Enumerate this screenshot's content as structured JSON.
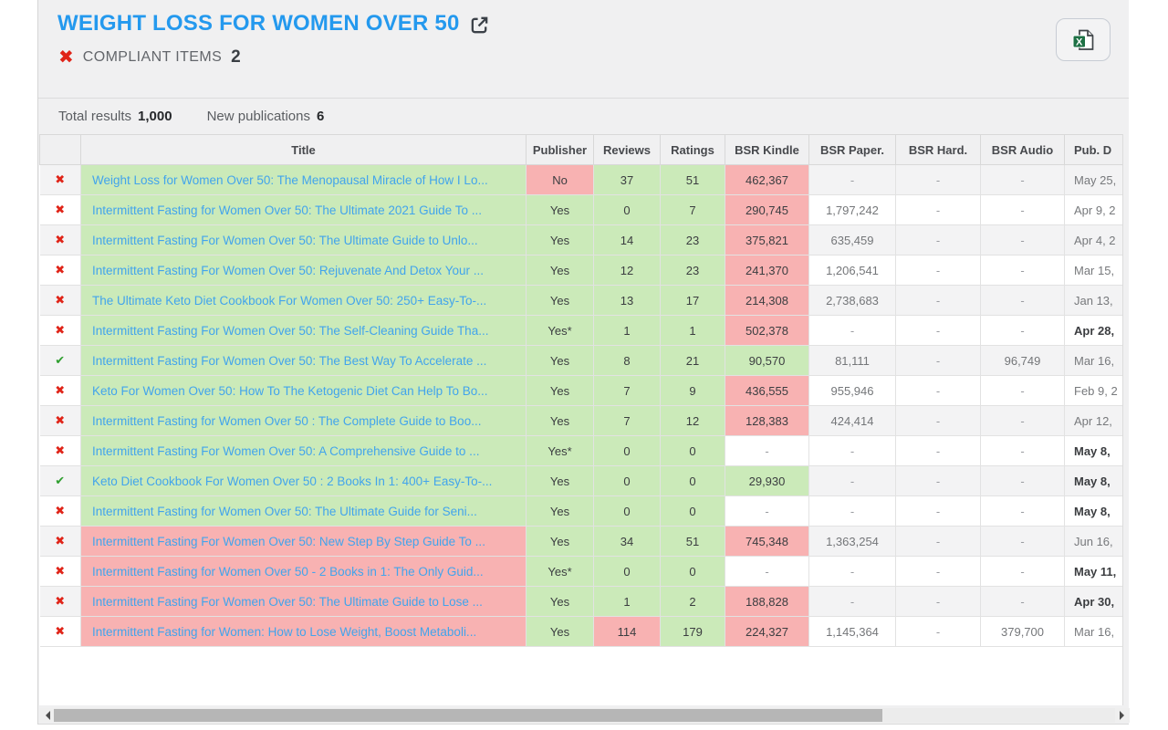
{
  "colors": {
    "accent_blue": "#2499ee",
    "link_blue": "#42a4ec",
    "green_bg": "#cbeab9",
    "red_bg": "#f8b2b2",
    "x_red": "#e02418",
    "check_green": "#2f9e2f"
  },
  "icons": {
    "external_link": "external-link-icon",
    "excel_export": "excel-export-icon",
    "x_glyph": "✖",
    "check_glyph": "✔"
  },
  "header": {
    "title": "WEIGHT LOSS FOR WOMEN OVER 50",
    "compliant_label": "COMPLIANT ITEMS",
    "compliant_count": "2"
  },
  "summary": {
    "total_results_label": "Total results",
    "total_results_value": "1,000",
    "new_publications_label": "New publications",
    "new_publications_value": "6"
  },
  "table": {
    "columns": [
      {
        "key": "status",
        "label": ""
      },
      {
        "key": "title",
        "label": "Title"
      },
      {
        "key": "publisher",
        "label": "Publisher"
      },
      {
        "key": "reviews",
        "label": "Reviews"
      },
      {
        "key": "ratings",
        "label": "Ratings"
      },
      {
        "key": "bsr_kindle",
        "label": "BSR Kindle"
      },
      {
        "key": "bsr_paper",
        "label": "BSR Paper."
      },
      {
        "key": "bsr_hard",
        "label": "BSR Hard."
      },
      {
        "key": "bsr_audio",
        "label": "BSR Audio"
      },
      {
        "key": "pub_date",
        "label": "Pub. D"
      }
    ],
    "rows": [
      {
        "status": "x",
        "title": "Weight Loss for Women Over 50: The Menopausal Miracle of How I Lo...",
        "title_bg": "green",
        "publisher": "No",
        "publisher_bg": "red",
        "reviews": "37",
        "reviews_bg": "green",
        "ratings": "51",
        "ratings_bg": "green",
        "bsr_kindle": "462,367",
        "bsr_kindle_bg": "red",
        "bsr_paper": "-",
        "bsr_hard": "-",
        "bsr_audio": "-",
        "pub_date": "May 25,",
        "pub_date_bold": false
      },
      {
        "status": "x",
        "title": "Intermittent Fasting for Women Over 50: The Ultimate 2021 Guide To ...",
        "title_bg": "green",
        "publisher": "Yes",
        "publisher_bg": "green",
        "reviews": "0",
        "reviews_bg": "green",
        "ratings": "7",
        "ratings_bg": "green",
        "bsr_kindle": "290,745",
        "bsr_kindle_bg": "red",
        "bsr_paper": "1,797,242",
        "bsr_hard": "-",
        "bsr_audio": "-",
        "pub_date": "Apr 9, 2",
        "pub_date_bold": false
      },
      {
        "status": "x",
        "title": "Intermittent Fasting For Women Over 50: The Ultimate Guide to Unlo...",
        "title_bg": "green",
        "publisher": "Yes",
        "publisher_bg": "green",
        "reviews": "14",
        "reviews_bg": "green",
        "ratings": "23",
        "ratings_bg": "green",
        "bsr_kindle": "375,821",
        "bsr_kindle_bg": "red",
        "bsr_paper": "635,459",
        "bsr_hard": "-",
        "bsr_audio": "-",
        "pub_date": "Apr 4, 2",
        "pub_date_bold": false
      },
      {
        "status": "x",
        "title": "Intermittent Fasting For Women Over 50: Rejuvenate And Detox Your ...",
        "title_bg": "green",
        "publisher": "Yes",
        "publisher_bg": "green",
        "reviews": "12",
        "reviews_bg": "green",
        "ratings": "23",
        "ratings_bg": "green",
        "bsr_kindle": "241,370",
        "bsr_kindle_bg": "red",
        "bsr_paper": "1,206,541",
        "bsr_hard": "-",
        "bsr_audio": "-",
        "pub_date": "Mar 15,",
        "pub_date_bold": false
      },
      {
        "status": "x",
        "title": "The Ultimate Keto Diet Cookbook For Women Over 50: 250+ Easy-To-...",
        "title_bg": "green",
        "publisher": "Yes",
        "publisher_bg": "green",
        "reviews": "13",
        "reviews_bg": "green",
        "ratings": "17",
        "ratings_bg": "green",
        "bsr_kindle": "214,308",
        "bsr_kindle_bg": "red",
        "bsr_paper": "2,738,683",
        "bsr_hard": "-",
        "bsr_audio": "-",
        "pub_date": "Jan 13,",
        "pub_date_bold": false
      },
      {
        "status": "x",
        "title": "Intermittent Fasting For Women Over 50: The Self-Cleaning Guide Tha...",
        "title_bg": "green",
        "publisher": "Yes*",
        "publisher_bg": "green",
        "reviews": "1",
        "reviews_bg": "green",
        "ratings": "1",
        "ratings_bg": "green",
        "bsr_kindle": "502,378",
        "bsr_kindle_bg": "red",
        "bsr_paper": "-",
        "bsr_hard": "-",
        "bsr_audio": "-",
        "pub_date": "Apr 28,",
        "pub_date_bold": true
      },
      {
        "status": "check",
        "title": "Intermittent Fasting For Women Over 50: The Best Way To Accelerate ...",
        "title_bg": "green",
        "publisher": "Yes",
        "publisher_bg": "green",
        "reviews": "8",
        "reviews_bg": "green",
        "ratings": "21",
        "ratings_bg": "green",
        "bsr_kindle": "90,570",
        "bsr_kindle_bg": "green",
        "bsr_paper": "81,111",
        "bsr_hard": "-",
        "bsr_audio": "96,749",
        "pub_date": "Mar 16,",
        "pub_date_bold": false
      },
      {
        "status": "x",
        "title": "Keto For Women Over 50: How To The Ketogenic Diet Can Help To Bo...",
        "title_bg": "green",
        "publisher": "Yes",
        "publisher_bg": "green",
        "reviews": "7",
        "reviews_bg": "green",
        "ratings": "9",
        "ratings_bg": "green",
        "bsr_kindle": "436,555",
        "bsr_kindle_bg": "red",
        "bsr_paper": "955,946",
        "bsr_hard": "-",
        "bsr_audio": "-",
        "pub_date": "Feb 9, 2",
        "pub_date_bold": false
      },
      {
        "status": "x",
        "title": "Intermittent Fasting for Women Over 50 : The Complete Guide to Boo...",
        "title_bg": "green",
        "publisher": "Yes",
        "publisher_bg": "green",
        "reviews": "7",
        "reviews_bg": "green",
        "ratings": "12",
        "ratings_bg": "green",
        "bsr_kindle": "128,383",
        "bsr_kindle_bg": "red",
        "bsr_paper": "424,414",
        "bsr_hard": "-",
        "bsr_audio": "-",
        "pub_date": "Apr 12,",
        "pub_date_bold": false
      },
      {
        "status": "x",
        "title": "Intermittent Fasting For Women Over 50: A Comprehensive Guide to ...",
        "title_bg": "green",
        "publisher": "Yes*",
        "publisher_bg": "green",
        "reviews": "0",
        "reviews_bg": "green",
        "ratings": "0",
        "ratings_bg": "green",
        "bsr_kindle": "-",
        "bsr_kindle_bg": "none",
        "bsr_paper": "-",
        "bsr_hard": "-",
        "bsr_audio": "-",
        "pub_date": "May 8,",
        "pub_date_bold": true
      },
      {
        "status": "check",
        "title": "Keto Diet Cookbook For Women Over 50 : 2 Books In 1: 400+ Easy-To-...",
        "title_bg": "green",
        "publisher": "Yes",
        "publisher_bg": "green",
        "reviews": "0",
        "reviews_bg": "green",
        "ratings": "0",
        "ratings_bg": "green",
        "bsr_kindle": "29,930",
        "bsr_kindle_bg": "green",
        "bsr_paper": "-",
        "bsr_hard": "-",
        "bsr_audio": "-",
        "pub_date": "May 8,",
        "pub_date_bold": true
      },
      {
        "status": "x",
        "title": "Intermittent Fasting for Women Over 50: The Ultimate Guide for Seni...",
        "title_bg": "green",
        "publisher": "Yes",
        "publisher_bg": "green",
        "reviews": "0",
        "reviews_bg": "green",
        "ratings": "0",
        "ratings_bg": "green",
        "bsr_kindle": "-",
        "bsr_kindle_bg": "none",
        "bsr_paper": "-",
        "bsr_hard": "-",
        "bsr_audio": "-",
        "pub_date": "May 8,",
        "pub_date_bold": true
      },
      {
        "status": "x",
        "title": "Intermittent Fasting For Women Over 50: New Step By Step Guide To ...",
        "title_bg": "red",
        "publisher": "Yes",
        "publisher_bg": "green",
        "reviews": "34",
        "reviews_bg": "green",
        "ratings": "51",
        "ratings_bg": "green",
        "bsr_kindle": "745,348",
        "bsr_kindle_bg": "red",
        "bsr_paper": "1,363,254",
        "bsr_hard": "-",
        "bsr_audio": "-",
        "pub_date": "Jun 16,",
        "pub_date_bold": false
      },
      {
        "status": "x",
        "title": "Intermittent Fasting for Women Over 50 - 2 Books in 1: The Only Guid...",
        "title_bg": "red",
        "publisher": "Yes*",
        "publisher_bg": "green",
        "reviews": "0",
        "reviews_bg": "green",
        "ratings": "0",
        "ratings_bg": "green",
        "bsr_kindle": "-",
        "bsr_kindle_bg": "none",
        "bsr_paper": "-",
        "bsr_hard": "-",
        "bsr_audio": "-",
        "pub_date": "May 11,",
        "pub_date_bold": true
      },
      {
        "status": "x",
        "title": "Intermittent Fasting For Women Over 50: The Ultimate Guide to Lose ...",
        "title_bg": "red",
        "publisher": "Yes",
        "publisher_bg": "green",
        "reviews": "1",
        "reviews_bg": "green",
        "ratings": "2",
        "ratings_bg": "green",
        "bsr_kindle": "188,828",
        "bsr_kindle_bg": "red",
        "bsr_paper": "-",
        "bsr_hard": "-",
        "bsr_audio": "-",
        "pub_date": "Apr 30,",
        "pub_date_bold": true
      },
      {
        "status": "x",
        "title": "Intermittent Fasting for Women: How to Lose Weight, Boost Metaboli...",
        "title_bg": "red",
        "publisher": "Yes",
        "publisher_bg": "green",
        "reviews": "114",
        "reviews_bg": "red",
        "ratings": "179",
        "ratings_bg": "green",
        "bsr_kindle": "224,327",
        "bsr_kindle_bg": "red",
        "bsr_paper": "1,145,364",
        "bsr_hard": "-",
        "bsr_audio": "379,700",
        "pub_date": "Mar 16,",
        "pub_date_bold": false
      }
    ]
  }
}
